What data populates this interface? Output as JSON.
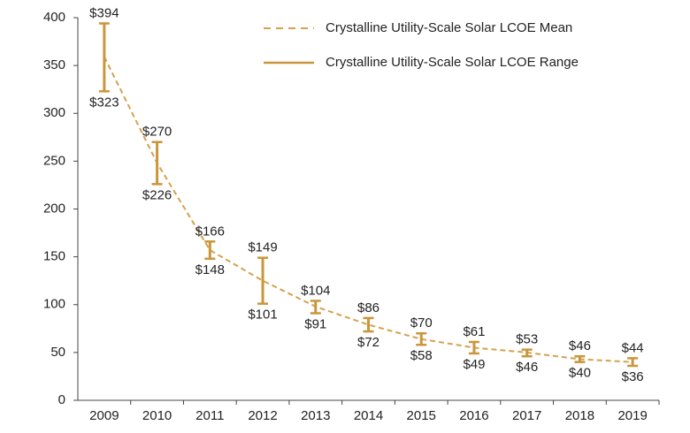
{
  "chart_data": {
    "type": "range-line",
    "categories": [
      "2009",
      "2010",
      "2011",
      "2012",
      "2013",
      "2014",
      "2015",
      "2016",
      "2017",
      "2018",
      "2019"
    ],
    "series": [
      {
        "name": "Crystalline Utility-Scale Solar LCOE Mean",
        "color": "#d4a24c",
        "dashed": true,
        "values": [
          359,
          248,
          157,
          125,
          98,
          79,
          64,
          55,
          50,
          43,
          40
        ]
      },
      {
        "name": "Crystalline Utility-Scale Solar LCOE Range",
        "color": "#c9963c",
        "high": [
          394,
          270,
          166,
          149,
          104,
          86,
          70,
          61,
          53,
          46,
          44
        ],
        "high_labels": [
          "$394",
          "$270",
          "$166",
          "$149",
          "$104",
          "$86",
          "$70",
          "$61",
          "$53",
          "$46",
          "$44"
        ],
        "low": [
          323,
          226,
          148,
          101,
          91,
          72,
          58,
          49,
          46,
          40,
          36
        ],
        "low_labels": [
          "$323",
          "$226",
          "$148",
          "$101",
          "$91",
          "$72",
          "$58",
          "$49",
          "$46",
          "$40",
          "$36"
        ]
      }
    ],
    "ylim": [
      0,
      400
    ],
    "yticks": [
      0,
      50,
      100,
      150,
      200,
      250,
      300,
      350,
      400
    ],
    "grid": false
  }
}
